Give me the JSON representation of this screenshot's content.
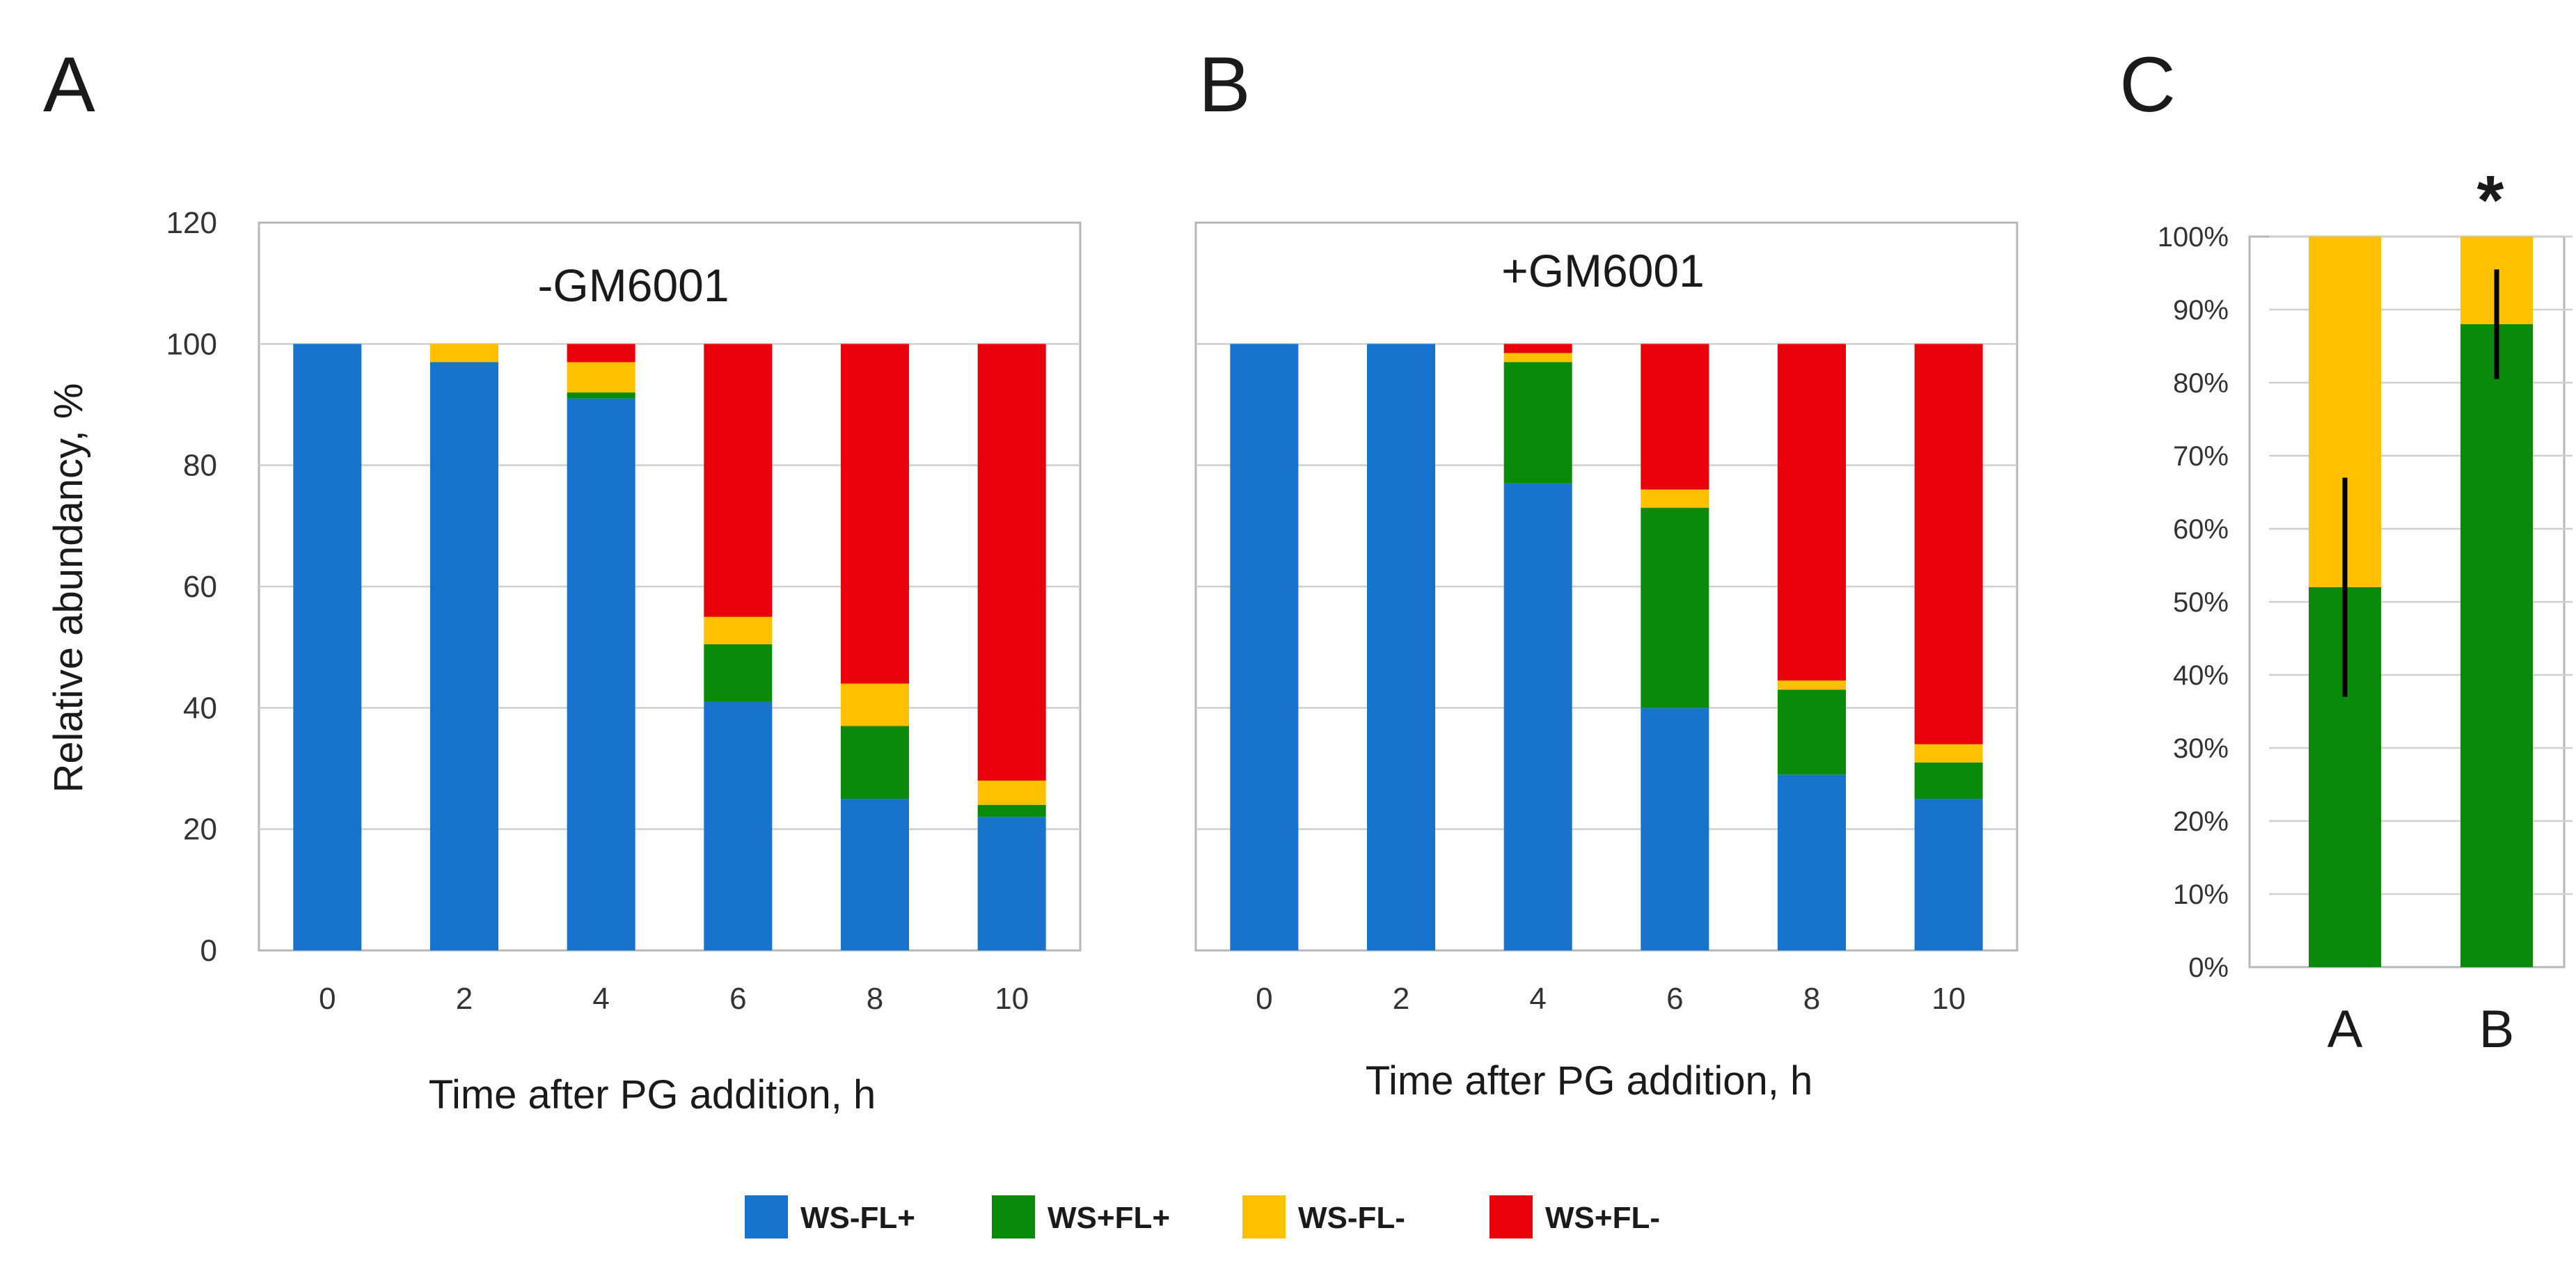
{
  "colors": {
    "WS-FL+": "#1873cc",
    "WS+FL+": "#0a8a0a",
    "WS-FL-": "#ffc000",
    "WS+FL-": "#e8000b"
  },
  "legend": [
    "WS-FL+",
    "WS+FL+",
    "WS-FL-",
    "WS+FL-"
  ],
  "chart_data": [
    {
      "panel": "A",
      "type": "bar",
      "stacked": true,
      "title": "-GM6001",
      "xlabel": "Time after PG addition, h",
      "ylabel": "Relative abundancy, %",
      "ylim": [
        0,
        120
      ],
      "yticks": [
        "0",
        "20",
        "40",
        "60",
        "80",
        "100",
        "120"
      ],
      "categories": [
        "0",
        "2",
        "4",
        "6",
        "8",
        "10"
      ],
      "series": [
        {
          "name": "WS-FL+",
          "values": [
            100,
            97,
            91,
            41,
            25,
            22
          ]
        },
        {
          "name": "WS+FL+",
          "values": [
            0,
            0,
            1,
            9.5,
            12,
            2
          ]
        },
        {
          "name": "WS-FL-",
          "values": [
            0,
            3,
            5,
            4.5,
            7,
            4
          ]
        },
        {
          "name": "WS+FL-",
          "values": [
            0,
            0,
            3,
            45,
            56,
            72
          ]
        }
      ]
    },
    {
      "panel": "B",
      "type": "bar",
      "stacked": true,
      "title": "+GM6001",
      "xlabel": "Time after PG addition, h",
      "ylabel": "",
      "ylim": [
        0,
        120
      ],
      "categories": [
        "0",
        "2",
        "4",
        "6",
        "8",
        "10"
      ],
      "series": [
        {
          "name": "WS-FL+",
          "values": [
            100,
            100,
            77,
            40,
            29,
            25
          ]
        },
        {
          "name": "WS+FL+",
          "values": [
            0,
            0,
            20,
            33,
            14,
            6
          ]
        },
        {
          "name": "WS-FL-",
          "values": [
            0,
            0,
            1.5,
            3,
            1.5,
            3
          ]
        },
        {
          "name": "WS+FL-",
          "values": [
            0,
            0,
            1.5,
            24,
            55.5,
            66
          ]
        }
      ]
    },
    {
      "panel": "C",
      "type": "bar",
      "stacked": true,
      "percent": true,
      "ylim": [
        0,
        100
      ],
      "yticks": [
        "0%",
        "10%",
        "20%",
        "30%",
        "40%",
        "50%",
        "60%",
        "70%",
        "80%",
        "90%",
        "100%"
      ],
      "categories": [
        "A",
        "B"
      ],
      "series": [
        {
          "name": "WS+FL+",
          "values": [
            52,
            88
          ],
          "error": [
            15,
            7.5
          ]
        },
        {
          "name": "WS-FL-",
          "values": [
            48,
            12
          ]
        }
      ],
      "annotation": "*"
    }
  ]
}
